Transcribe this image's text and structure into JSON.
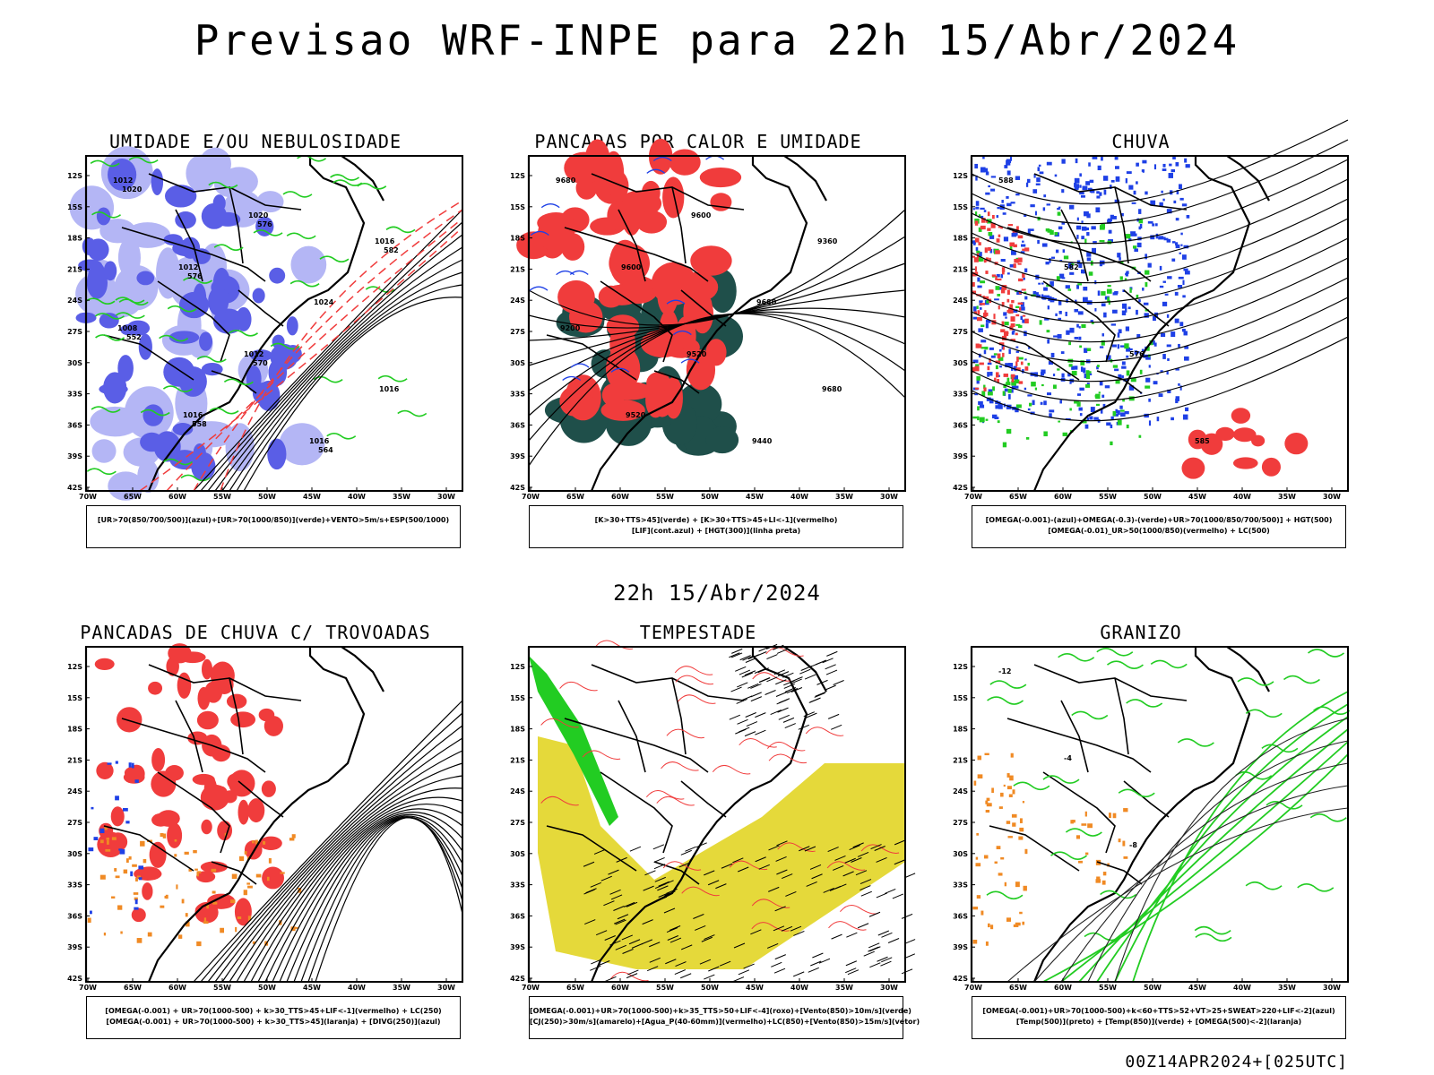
{
  "title": "Previsao WRF-INPE  para 22h 15/Abr/2024",
  "subtitle_time": "22h 15/Abr/2024",
  "footer": "00Z14APR2024+[025UTC]",
  "axes": {
    "lat_labels": [
      "12S",
      "15S",
      "18S",
      "21S",
      "24S",
      "27S",
      "30S",
      "33S",
      "36S",
      "39S",
      "42S"
    ],
    "lon_labels": [
      "70W",
      "65W",
      "60W",
      "55W",
      "50W",
      "45W",
      "40W",
      "35W",
      "30W"
    ]
  },
  "colors": {
    "moisture_blue": "#5a5ee6",
    "light_blue": "#b4b6f5",
    "green": "#22cc22",
    "red": "#f03c3c",
    "dark_teal": "#1f4f4a",
    "yellow": "#e5d93a",
    "orange": "#f08a24",
    "dark_blue": "#1e40e6"
  },
  "panels": [
    {
      "title": "UMIDADE E/OU NEBULOSIDADE",
      "legend_lines": [
        "[UR>70(850/700/500)](azul)+[UR>70(1000/850)](verde)+VENTO>5m/s+ESP(500/1000)"
      ],
      "contour_labels": [
        "1012",
        "1012",
        "1012",
        "1016",
        "1016",
        "1008",
        "1016",
        "1020",
        "1024",
        "1016",
        "1020",
        "576",
        "570",
        "564",
        "582",
        "552",
        "558",
        "576"
      ]
    },
    {
      "title": "PANCADAS POR CALOR E UMIDADE",
      "legend_lines": [
        "[K>30+TTS>45](verde) + [K>30+TTS>45+LI<-1](vermelho)",
        "[LIF](cont.azul) + [HGT(300)](linha preta)"
      ],
      "contour_labels": [
        "9680",
        "9600",
        "9520",
        "9440",
        "9360",
        "9200",
        "9520",
        "9600",
        "9680",
        "9680"
      ]
    },
    {
      "title": "CHUVA",
      "legend_lines": [
        "[OMEGA(-0.001)-(azul)+OMEGA(-0.3)-(verde)+UR>70(1000/850/700/500)] + HGT(500)",
        "[OMEGA(-0.01)_UR>50(1000/850)(vermelho) + LC(500)"
      ],
      "contour_labels": [
        "588",
        "582",
        "576",
        "585"
      ]
    },
    {
      "title": "PANCADAS DE CHUVA C/ TROVOADAS",
      "legend_lines": [
        "[OMEGA(-0.001) + UR>70(1000-500) + k>30_TTS>45+LIF<-1](vermelho) + LC(250)",
        "[OMEGA(-0.001) + UR>70(1000-500) + k>30_TTS>45](laranja) + [DIVG(250)](azul)"
      ],
      "contour_labels": []
    },
    {
      "title": "TEMPESTADE",
      "legend_lines": [
        "[OMEGA(-0.001)+UR>70(1000-500)+k>35_TTS>50+LIF<-4](roxo)+[Vento(850)>10m/s](verde)",
        "[CJ(250)>30m/s](amarelo)+[Agua_P(40-60mm)](vermelho)+LC(850)+[Vento(850)>15m/s](vetor)"
      ],
      "contour_labels": []
    },
    {
      "title": "GRANIZO",
      "legend_lines": [
        "[OMEGA(-0.001)+UR>70(1000-500)+k<60+TTS>52+VT>25+SWEAT>220+LIF<-2](azul)",
        "[Temp(500)](preto) + [Temp(850)](verde) + [OMEGA(500)<-2](laranja)"
      ],
      "contour_labels": [
        "-12",
        "-4",
        "-8"
      ]
    }
  ]
}
